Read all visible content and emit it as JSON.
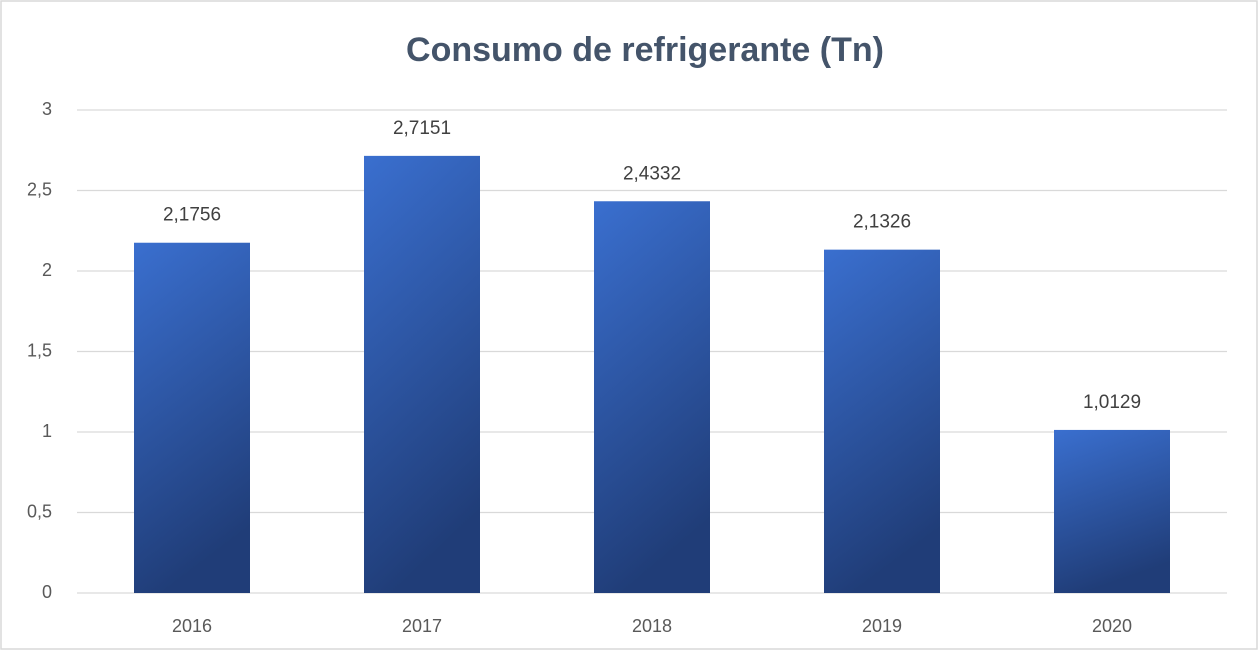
{
  "chart_data": {
    "type": "bar",
    "title": "Consumo de refrigerante (Tn)",
    "categories": [
      "2016",
      "2017",
      "2018",
      "2019",
      "2020"
    ],
    "values": [
      2.1756,
      2.7151,
      2.4332,
      2.1326,
      1.0129
    ],
    "value_labels": [
      "2,1756",
      "2,7151",
      "2,4332",
      "2,1326",
      "1,0129"
    ],
    "color": "#3a6fcf",
    "ylim": [
      0,
      3
    ],
    "yticks": [
      0,
      {
        "value": 0.5,
        "label": "0,5"
      },
      1,
      {
        "value": 1.5,
        "label": "1,5"
      },
      2,
      {
        "value": 2.5,
        "label": "2,5"
      },
      3
    ],
    "grid": true
  }
}
